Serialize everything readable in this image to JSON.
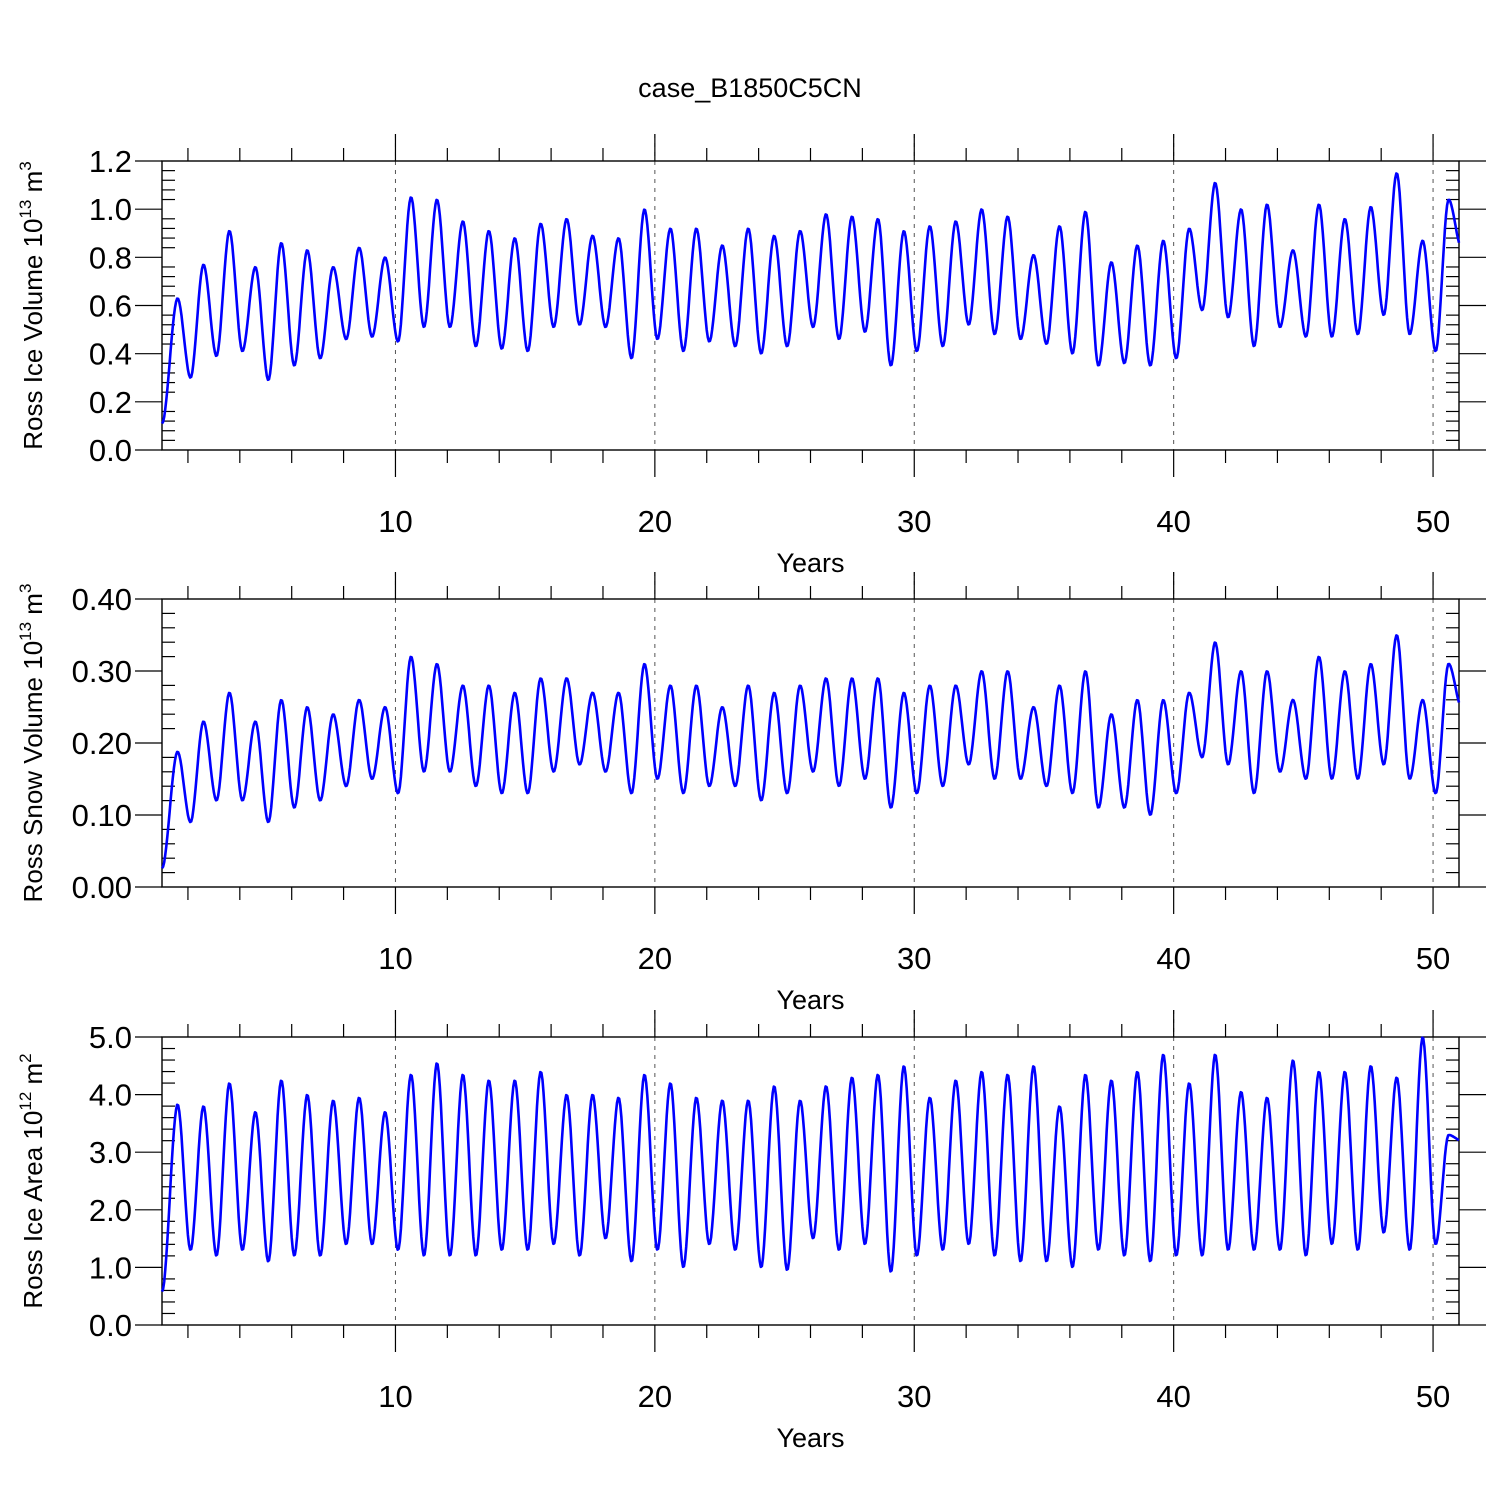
{
  "title": "case_B1850C5CN",
  "colors": {
    "series": "#0000ff",
    "axes": "#000000",
    "grid": "#555555"
  },
  "chart_data": [
    {
      "type": "line",
      "id": "ice-volume",
      "ylabel": "Ross Ice Volume 10",
      "ylabel_exp": "13",
      "ylabel_unit": " m",
      "ylabel_unit_exp": "3",
      "xlabel": "Years",
      "xlim": [
        1,
        51
      ],
      "ylim": [
        0,
        1.2
      ],
      "x_ticks": [
        10,
        20,
        30,
        40,
        50
      ],
      "x_tick_labels": [
        "10",
        "20",
        "30",
        "40",
        "50"
      ],
      "y_ticks": [
        0,
        0.2,
        0.4,
        0.6,
        0.8,
        1.0,
        1.2
      ],
      "y_tick_labels": [
        "0.0",
        "0.2",
        "0.4",
        "0.6",
        "0.8",
        "1.0",
        "1.2"
      ],
      "vertical_grid": [
        10,
        20,
        30,
        40,
        50
      ],
      "first_year": {
        "min": 0.11,
        "max": 0.63
      },
      "annual_min": [
        0.3,
        0.39,
        0.41,
        0.29,
        0.35,
        0.38,
        0.46,
        0.47,
        0.45,
        0.51,
        0.51,
        0.43,
        0.42,
        0.41,
        0.51,
        0.52,
        0.51,
        0.38,
        0.46,
        0.41,
        0.45,
        0.43,
        0.4,
        0.43,
        0.51,
        0.46,
        0.49,
        0.35,
        0.41,
        0.43,
        0.52,
        0.48,
        0.46,
        0.44,
        0.4,
        0.35,
        0.36,
        0.35,
        0.38,
        0.58,
        0.55,
        0.43,
        0.51,
        0.47,
        0.47,
        0.48,
        0.56,
        0.48,
        0.41,
        0.84
      ],
      "annual_max": [
        0.77,
        0.91,
        0.76,
        0.86,
        0.83,
        0.76,
        0.84,
        0.8,
        1.05,
        1.04,
        0.95,
        0.91,
        0.88,
        0.94,
        0.96,
        0.89,
        0.88,
        1.0,
        0.92,
        0.92,
        0.85,
        0.92,
        0.89,
        0.91,
        0.98,
        0.97,
        0.96,
        0.91,
        0.93,
        0.95,
        1.0,
        0.97,
        0.81,
        0.93,
        0.99,
        0.78,
        0.85,
        0.87,
        0.92,
        1.11,
        1.0,
        1.02,
        0.83,
        1.02,
        0.96,
        1.01,
        1.15,
        0.87,
        1.04,
        0.95
      ]
    },
    {
      "type": "line",
      "id": "snow-volume",
      "ylabel": "Ross Snow Volume 10",
      "ylabel_exp": "13",
      "ylabel_unit": " m",
      "ylabel_unit_exp": "3",
      "xlabel": "Years",
      "xlim": [
        1,
        51
      ],
      "ylim": [
        0,
        0.4
      ],
      "x_ticks": [
        10,
        20,
        30,
        40,
        50
      ],
      "x_tick_labels": [
        "10",
        "20",
        "30",
        "40",
        "50"
      ],
      "y_ticks": [
        0,
        0.1,
        0.2,
        0.3,
        0.4
      ],
      "y_tick_labels": [
        "0.00",
        "0.10",
        "0.20",
        "0.30",
        "0.40"
      ],
      "vertical_grid": [
        10,
        20,
        30,
        40,
        50
      ],
      "first_year": {
        "min": 0.026,
        "max": 0.188
      },
      "annual_min": [
        0.09,
        0.12,
        0.12,
        0.09,
        0.11,
        0.12,
        0.14,
        0.15,
        0.13,
        0.16,
        0.16,
        0.14,
        0.13,
        0.13,
        0.16,
        0.17,
        0.16,
        0.13,
        0.15,
        0.13,
        0.14,
        0.14,
        0.12,
        0.13,
        0.16,
        0.14,
        0.15,
        0.11,
        0.13,
        0.14,
        0.17,
        0.15,
        0.15,
        0.14,
        0.13,
        0.11,
        0.11,
        0.1,
        0.13,
        0.18,
        0.17,
        0.13,
        0.16,
        0.15,
        0.15,
        0.15,
        0.17,
        0.15,
        0.13,
        0.25
      ],
      "annual_max": [
        0.23,
        0.27,
        0.23,
        0.26,
        0.25,
        0.24,
        0.26,
        0.25,
        0.32,
        0.31,
        0.28,
        0.28,
        0.27,
        0.29,
        0.29,
        0.27,
        0.27,
        0.31,
        0.28,
        0.28,
        0.25,
        0.28,
        0.27,
        0.28,
        0.29,
        0.29,
        0.29,
        0.27,
        0.28,
        0.28,
        0.3,
        0.3,
        0.25,
        0.28,
        0.3,
        0.24,
        0.26,
        0.26,
        0.27,
        0.34,
        0.3,
        0.3,
        0.26,
        0.32,
        0.3,
        0.31,
        0.35,
        0.26,
        0.31,
        0.3
      ]
    },
    {
      "type": "line",
      "id": "ice-area",
      "ylabel": "Ross Ice Area 10",
      "ylabel_exp": "12",
      "ylabel_unit": " m",
      "ylabel_unit_exp": "2",
      "xlabel": "Years",
      "xlim": [
        1,
        51
      ],
      "ylim": [
        0,
        5
      ],
      "x_ticks": [
        10,
        20,
        30,
        40,
        50
      ],
      "x_tick_labels": [
        "10",
        "20",
        "30",
        "40",
        "50"
      ],
      "y_ticks": [
        0,
        1,
        2,
        3,
        4,
        5
      ],
      "y_tick_labels": [
        "0.0",
        "1.0",
        "2.0",
        "3.0",
        "4.0",
        "5.0"
      ],
      "vertical_grid": [
        10,
        20,
        30,
        40,
        50
      ],
      "first_year": {
        "min": 0.58,
        "max": 3.83
      },
      "annual_min": [
        1.3,
        1.2,
        1.3,
        1.1,
        1.2,
        1.2,
        1.4,
        1.4,
        1.3,
        1.2,
        1.2,
        1.2,
        1.3,
        1.3,
        1.4,
        1.2,
        1.5,
        1.1,
        1.3,
        1.0,
        1.4,
        1.3,
        1.0,
        0.95,
        1.5,
        1.3,
        1.4,
        0.92,
        1.2,
        1.3,
        1.4,
        1.2,
        1.1,
        1.1,
        1.0,
        1.3,
        1.2,
        1.1,
        1.2,
        1.2,
        1.3,
        1.3,
        1.3,
        1.2,
        1.4,
        1.3,
        1.6,
        1.3,
        1.4,
        3.2
      ],
      "annual_max": [
        3.8,
        4.2,
        3.7,
        4.25,
        4.0,
        3.9,
        3.95,
        3.7,
        4.35,
        4.55,
        4.35,
        4.25,
        4.25,
        4.4,
        4.0,
        4.0,
        3.95,
        4.35,
        4.2,
        3.95,
        3.9,
        3.9,
        4.15,
        3.9,
        4.15,
        4.3,
        4.35,
        4.5,
        3.95,
        4.25,
        4.4,
        4.35,
        4.5,
        3.8,
        4.35,
        4.25,
        4.4,
        4.7,
        4.2,
        4.7,
        4.05,
        3.95,
        4.6,
        4.4,
        4.4,
        4.5,
        4.3,
        5.0,
        3.3,
        3.2
      ]
    }
  ]
}
